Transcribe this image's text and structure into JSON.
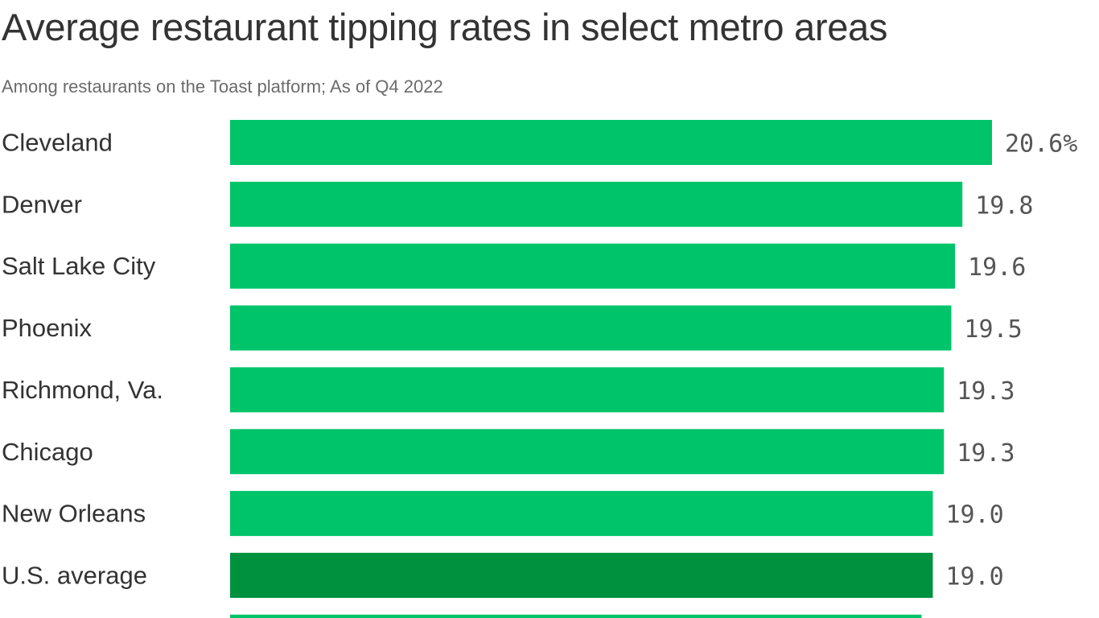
{
  "header": {
    "title": "Average restaurant tipping rates in select metro areas",
    "subtitle": "Among restaurants on the Toast platform; As of Q4 2022"
  },
  "colors": {
    "bar": "#00c46a",
    "highlight": "#00913f",
    "label": "#333333",
    "value": "#555555"
  },
  "chart_data": {
    "type": "bar",
    "orientation": "horizontal",
    "title": "Average restaurant tipping rates in select metro areas",
    "subtitle": "Among restaurants on the Toast platform; As of Q4 2022",
    "categories": [
      "Cleveland",
      "Denver",
      "Salt Lake City",
      "Phoenix",
      "Richmond, Va.",
      "Chicago",
      "New Orleans",
      "U.S. average"
    ],
    "values": [
      20.6,
      19.8,
      19.6,
      19.5,
      19.3,
      19.3,
      19.0,
      19.0
    ],
    "value_labels": [
      "20.6%",
      "19.8",
      "19.6",
      "19.5",
      "19.3",
      "19.3",
      "19.0",
      "19.0"
    ],
    "highlight": "U.S. average",
    "xlim": [
      0,
      20.6
    ],
    "grid": false,
    "legend": "none"
  }
}
